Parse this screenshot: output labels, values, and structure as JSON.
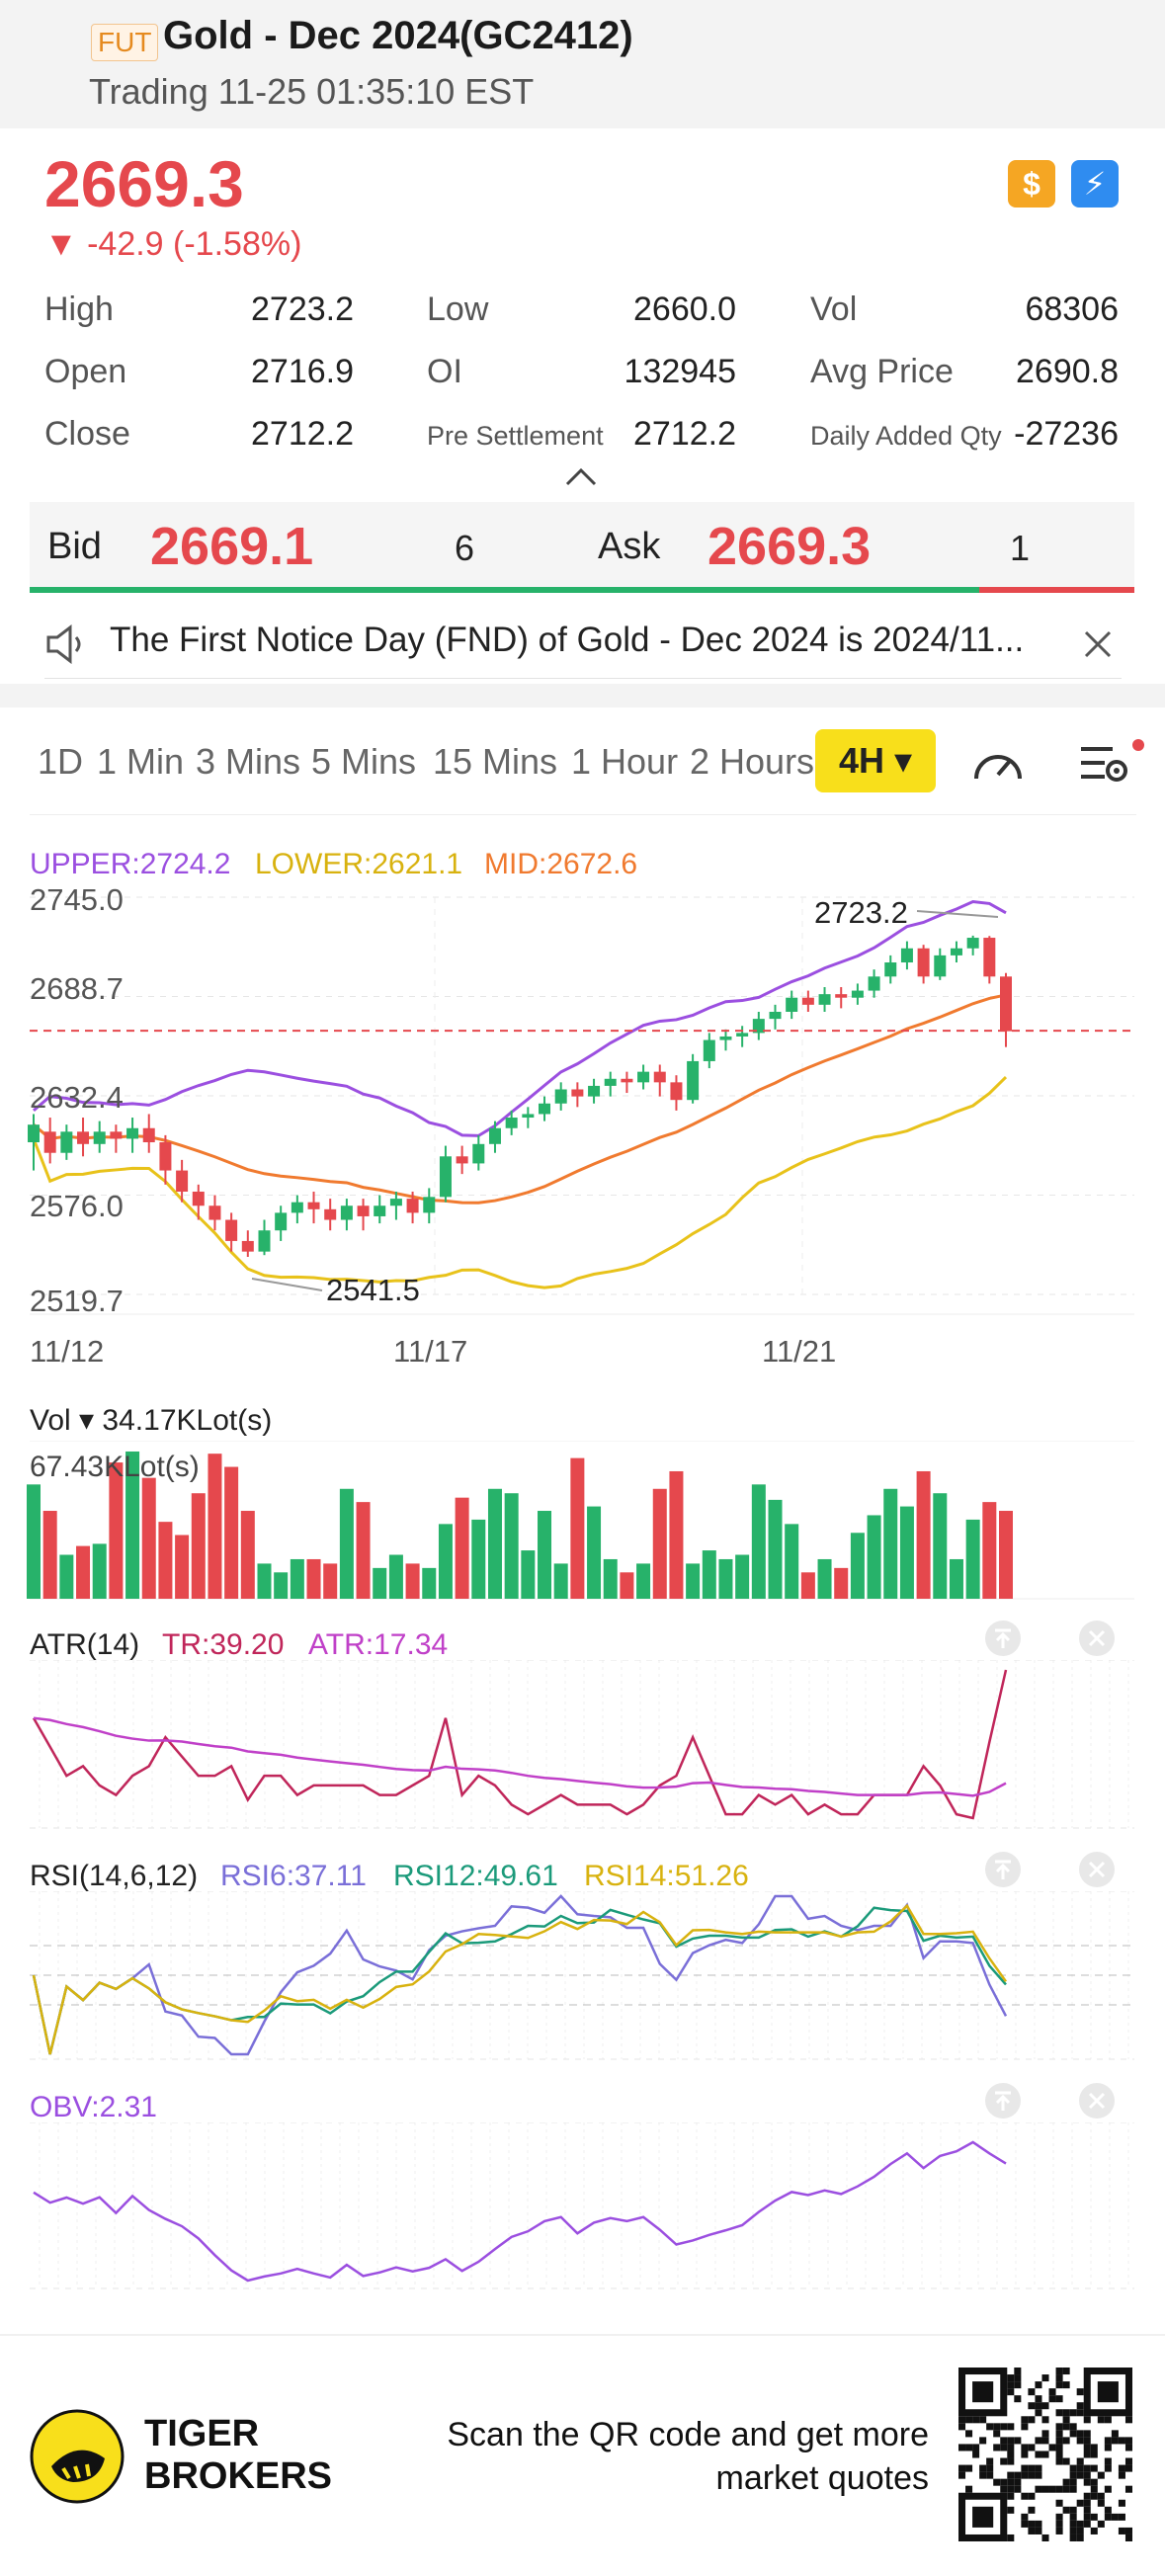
{
  "header": {
    "badge": "FUT",
    "title": "Gold - Dec 2024(GC2412)",
    "subtitle": "Trading 11-25 01:35:10 EST"
  },
  "quote": {
    "price": "2669.3",
    "change": "▼ -42.9 (-1.58%)",
    "icon_dollar": "$",
    "icon_flash": "⚡"
  },
  "stats": [
    {
      "label": "High",
      "value": "2723.2"
    },
    {
      "label": "Low",
      "value": "2660.0"
    },
    {
      "label": "Vol",
      "value": "68306"
    },
    {
      "label": "Open",
      "value": "2716.9"
    },
    {
      "label": "OI",
      "value": "132945"
    },
    {
      "label": "Avg Price",
      "value": "2690.8"
    },
    {
      "label": "Close",
      "value": "2712.2"
    },
    {
      "label": "Pre Settlement",
      "value": "2712.2"
    },
    {
      "label": "Daily Added Qty",
      "value": "-27236"
    }
  ],
  "orderbook": {
    "bid_label": "Bid",
    "bid_price": "2669.1",
    "bid_qty": "6",
    "ask_label": "Ask",
    "ask_price": "2669.3",
    "ask_qty": "1",
    "bid_ratio": 0.86
  },
  "notice": {
    "text": "The First Notice Day (FND) of Gold - Dec 2024 is 2024/11..."
  },
  "tabs": [
    "1D",
    "1 Min",
    "3 Mins",
    "5 Mins",
    "15 Mins",
    "1 Hour",
    "2 Hours"
  ],
  "active_tab": "4H ▾",
  "legend": {
    "upper": "UPPER:2724.2",
    "lower": "LOWER:2621.1",
    "mid": "MID:2672.6",
    "colors": {
      "upper": "#9b4fe0",
      "lower": "#e8c21a",
      "mid": "#f07a2f",
      "up": "#27b26a",
      "down": "#e5484d"
    }
  },
  "price_axis": [
    "2745.0",
    "2688.7",
    "2632.4",
    "2576.0",
    "2519.7"
  ],
  "date_axis": [
    "11/12",
    "11/17",
    "11/21"
  ],
  "annotations": {
    "high": "2723.2",
    "low": "2541.5"
  },
  "volume": {
    "label": "Vol ▾ 34.17KLot(s)",
    "max_label": "67.43KLot(s)"
  },
  "atr": {
    "name": "ATR(14)",
    "tr": "TR:39.20",
    "atr": "ATR:17.34"
  },
  "rsi": {
    "name": "RSI(14,6,12)",
    "rsi6": "RSI6:37.11",
    "rsi12": "RSI12:49.61",
    "rsi14": "RSI14:51.26"
  },
  "obv": {
    "name": "OBV:2.31"
  },
  "footer": {
    "brand_line1": "TIGER",
    "brand_line2": "BROKERS",
    "scan_line1": "Scan the QR code and get more",
    "scan_line2": "market quotes"
  },
  "chart_data": {
    "type": "candlestick",
    "y_range": [
      2519.7,
      2745.0
    ],
    "x_labels": [
      "11/12",
      "11/17",
      "11/21"
    ],
    "last_price": 2669.3,
    "candles": [
      [
        2606,
        2616,
        2590,
        2622
      ],
      [
        2612,
        2600,
        2594,
        2620
      ],
      [
        2600,
        2612,
        2596,
        2616
      ],
      [
        2612,
        2605,
        2598,
        2620
      ],
      [
        2605,
        2612,
        2600,
        2618
      ],
      [
        2612,
        2608,
        2600,
        2616
      ],
      [
        2608,
        2614,
        2600,
        2620
      ],
      [
        2614,
        2606,
        2600,
        2622
      ],
      [
        2606,
        2590,
        2582,
        2610
      ],
      [
        2590,
        2578,
        2572,
        2596
      ],
      [
        2578,
        2570,
        2562,
        2582
      ],
      [
        2570,
        2562,
        2556,
        2576
      ],
      [
        2562,
        2550,
        2544,
        2566
      ],
      [
        2550,
        2544,
        2541,
        2556
      ],
      [
        2544,
        2556,
        2542,
        2562
      ],
      [
        2556,
        2566,
        2550,
        2570
      ],
      [
        2566,
        2572,
        2560,
        2576
      ],
      [
        2572,
        2568,
        2560,
        2578
      ],
      [
        2568,
        2562,
        2556,
        2574
      ],
      [
        2562,
        2570,
        2556,
        2574
      ],
      [
        2570,
        2564,
        2556,
        2574
      ],
      [
        2564,
        2570,
        2560,
        2576
      ],
      [
        2570,
        2574,
        2562,
        2578
      ],
      [
        2574,
        2566,
        2560,
        2578
      ],
      [
        2566,
        2575,
        2560,
        2580
      ],
      [
        2575,
        2598,
        2572,
        2604
      ],
      [
        2598,
        2594,
        2588,
        2604
      ],
      [
        2594,
        2605,
        2590,
        2610
      ],
      [
        2605,
        2614,
        2600,
        2618
      ],
      [
        2614,
        2620,
        2610,
        2624
      ],
      [
        2620,
        2622,
        2614,
        2626
      ],
      [
        2622,
        2628,
        2618,
        2632
      ],
      [
        2628,
        2636,
        2624,
        2640
      ],
      [
        2636,
        2632,
        2626,
        2640
      ],
      [
        2632,
        2638,
        2628,
        2642
      ],
      [
        2638,
        2642,
        2632,
        2646
      ],
      [
        2642,
        2640,
        2634,
        2646
      ],
      [
        2640,
        2646,
        2636,
        2650
      ],
      [
        2646,
        2640,
        2632,
        2650
      ],
      [
        2640,
        2630,
        2624,
        2644
      ],
      [
        2630,
        2652,
        2628,
        2656
      ],
      [
        2652,
        2664,
        2648,
        2668
      ],
      [
        2664,
        2666,
        2658,
        2670
      ],
      [
        2666,
        2668,
        2660,
        2672
      ],
      [
        2668,
        2676,
        2664,
        2680
      ],
      [
        2676,
        2680,
        2670,
        2684
      ],
      [
        2680,
        2688,
        2676,
        2692
      ],
      [
        2688,
        2684,
        2680,
        2692
      ],
      [
        2684,
        2690,
        2680,
        2694
      ],
      [
        2690,
        2688,
        2682,
        2694
      ],
      [
        2688,
        2692,
        2684,
        2696
      ],
      [
        2692,
        2700,
        2688,
        2704
      ],
      [
        2700,
        2708,
        2696,
        2712
      ],
      [
        2708,
        2716,
        2704,
        2720
      ],
      [
        2716,
        2700,
        2696,
        2718
      ],
      [
        2700,
        2712,
        2698,
        2716
      ],
      [
        2712,
        2716,
        2708,
        2720
      ],
      [
        2716,
        2722,
        2712,
        2723.2
      ],
      [
        2722,
        2700,
        2696,
        2723
      ],
      [
        2700,
        2669,
        2660,
        2702
      ]
    ],
    "volume": [
      52,
      40,
      20,
      24,
      25,
      62,
      67,
      55,
      35,
      29,
      48,
      66,
      60,
      40,
      16,
      12,
      18,
      18,
      16,
      50,
      44,
      14,
      20,
      16,
      14,
      34,
      46,
      36,
      50,
      48,
      22,
      40,
      16,
      64,
      42,
      18,
      12,
      16,
      50,
      58,
      16,
      22,
      18,
      20,
      52,
      45,
      34,
      12,
      18,
      14,
      30,
      38,
      50,
      42,
      58,
      48,
      18,
      36,
      44,
      40
    ]
  }
}
